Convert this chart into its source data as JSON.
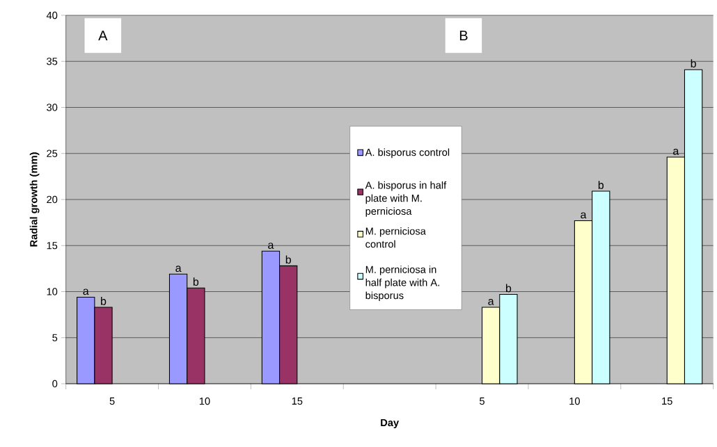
{
  "chart_data": {
    "type": "bar",
    "xlabel": "Day",
    "ylabel": "Radial growth (mm)",
    "categories": [
      "5",
      "10",
      "15",
      null,
      "5",
      "10",
      "15"
    ],
    "series": [
      {
        "name": "A. bisporus control",
        "color": "#9999ff",
        "values": [
          9.4,
          11.9,
          14.4,
          null,
          null,
          null,
          null
        ],
        "value_labels": [
          "a",
          "a",
          "a",
          null,
          null,
          null,
          null
        ]
      },
      {
        "name": "A. bisporus in half plate with M. perniciosa",
        "color": "#993366",
        "values": [
          8.3,
          10.4,
          12.8,
          null,
          null,
          null,
          null
        ],
        "value_labels": [
          "b",
          "b",
          "b",
          null,
          null,
          null,
          null
        ]
      },
      {
        "name": "M. perniciosa control",
        "color": "#ffffcc",
        "values": [
          null,
          null,
          null,
          null,
          8.3,
          17.7,
          24.6
        ],
        "value_labels": [
          null,
          null,
          null,
          null,
          "a",
          "a",
          "a"
        ]
      },
      {
        "name": "M. perniciosa in half plate with A. bisporus",
        "color": "#ccffff",
        "values": [
          null,
          null,
          null,
          null,
          9.7,
          20.9,
          34.1
        ],
        "value_labels": [
          null,
          null,
          null,
          null,
          "b",
          "b",
          "b"
        ]
      }
    ],
    "ylim": [
      0,
      40
    ],
    "yticks": [
      0,
      5,
      10,
      15,
      20,
      25,
      30,
      35,
      40
    ],
    "grid": "y",
    "legend": "center",
    "annotations": [
      "A",
      "B"
    ]
  }
}
